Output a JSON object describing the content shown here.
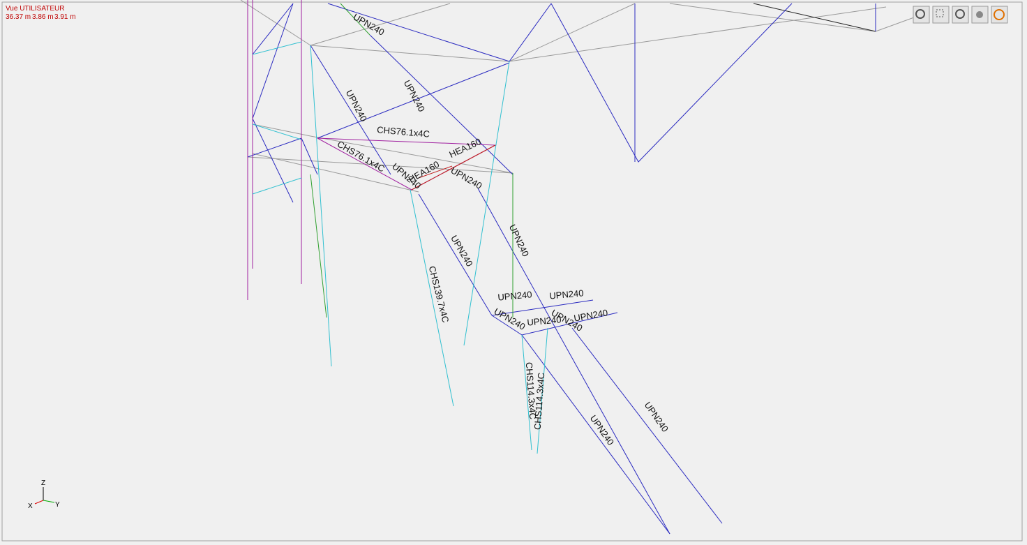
{
  "header": {
    "title": "Vue UTILISATEUR",
    "dimensions": [
      "36.37 m",
      "3.86 m",
      "3.91 m"
    ]
  },
  "axes": {
    "z": "Z",
    "x": "X",
    "y": "Y"
  },
  "members": [
    "UPN240",
    "UPN240",
    "UPN240",
    "CHS76.1x4C",
    "HEA160",
    "CHS76.1x4C",
    "UPN240",
    "HEA160",
    "UPN240",
    "UPN240",
    "UPN240",
    "CHS139.7x4C",
    "UPN240",
    "UPN240",
    "UPN240",
    "UPN240",
    "UPN240",
    "UPN240",
    "CHS114.3x4C",
    "CHS114.3x4C",
    "UPN240",
    "UPN240"
  ]
}
